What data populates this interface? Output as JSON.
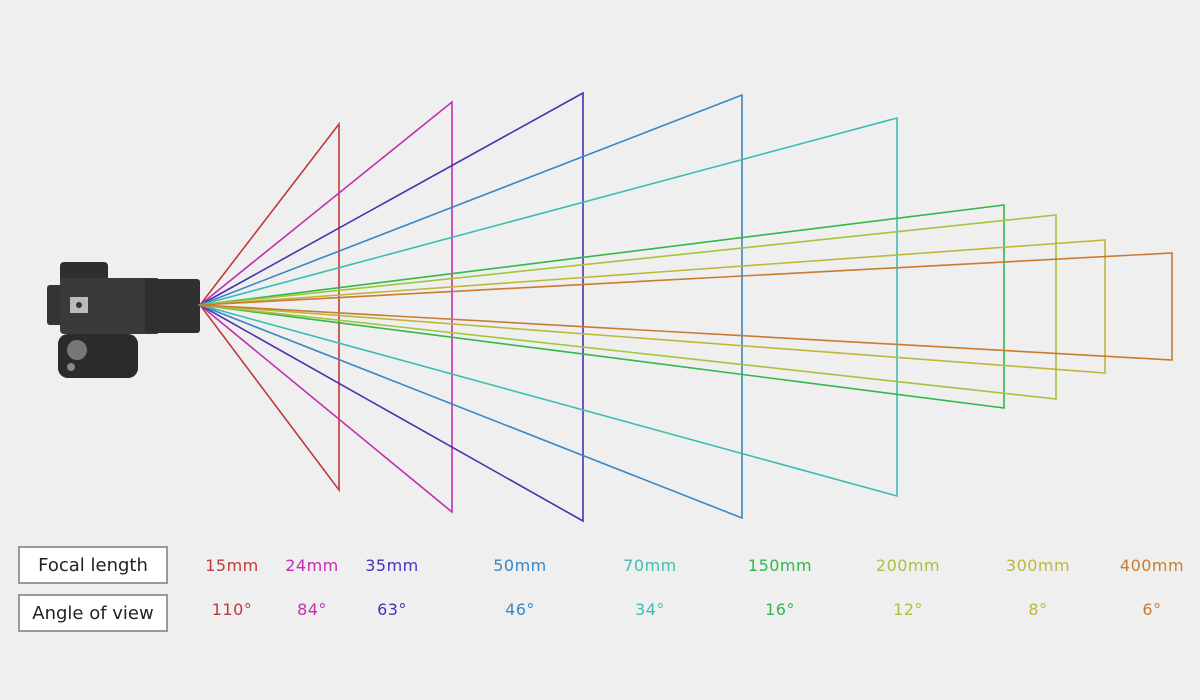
{
  "headers": {
    "focal_length": "Focal length",
    "angle_of_view": "Angle of view"
  },
  "lenses": [
    {
      "focal": "15mm",
      "angle": "110°",
      "color": "#c0393b"
    },
    {
      "focal": "24mm",
      "angle": "84°",
      "color": "#c22fae"
    },
    {
      "focal": "35mm",
      "angle": "63°",
      "color": "#4b30b0"
    },
    {
      "focal": "50mm",
      "angle": "46°",
      "color": "#3a86c2"
    },
    {
      "focal": "70mm",
      "angle": "34°",
      "color": "#3dbdb0"
    },
    {
      "focal": "150mm",
      "angle": "16°",
      "color": "#2fb84c"
    },
    {
      "focal": "200mm",
      "angle": "12°",
      "color": "#a6c33c"
    },
    {
      "focal": "300mm",
      "angle": "8°",
      "color": "#bdb73c"
    },
    {
      "focal": "400mm",
      "angle": "6°",
      "color": "#c97b32"
    }
  ]
}
